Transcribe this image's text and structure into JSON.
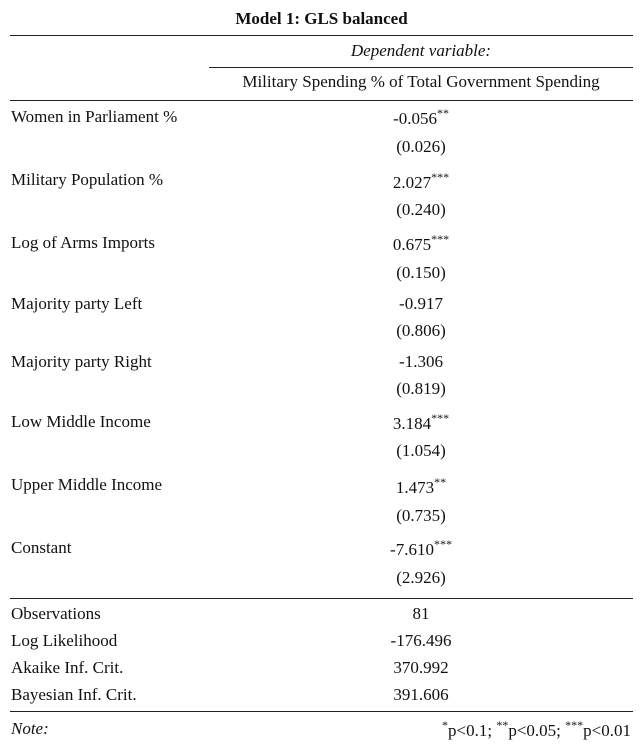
{
  "title": "Model 1: GLS balanced",
  "header": {
    "dependent_variable_label": "Dependent variable:",
    "dependent_variable": "Military Spending % of Total Government Spending"
  },
  "coefficients": [
    {
      "label": "Women in Parliament %",
      "estimate": "-0.056",
      "stars": "**",
      "se": "(0.026)"
    },
    {
      "label": "Military Population %",
      "estimate": "2.027",
      "stars": "***",
      "se": "(0.240)"
    },
    {
      "label": "Log of Arms Imports",
      "estimate": "0.675",
      "stars": "***",
      "se": "(0.150)"
    },
    {
      "label": "Majority party Left",
      "estimate": "-0.917",
      "stars": "",
      "se": "(0.806)"
    },
    {
      "label": "Majority party Right",
      "estimate": "-1.306",
      "stars": "",
      "se": "(0.819)"
    },
    {
      "label": "Low Middle Income",
      "estimate": "3.184",
      "stars": "***",
      "se": "(1.054)"
    },
    {
      "label": "Upper Middle Income",
      "estimate": "1.473",
      "stars": "**",
      "se": "(0.735)"
    },
    {
      "label": "Constant",
      "estimate": "-7.610",
      "stars": "***",
      "se": "(2.926)"
    }
  ],
  "statistics": [
    {
      "label": "Observations",
      "value": "81"
    },
    {
      "label": "Log Likelihood",
      "value": "-176.496"
    },
    {
      "label": "Akaike Inf. Crit.",
      "value": "370.992"
    },
    {
      "label": "Bayesian Inf. Crit.",
      "value": "391.606"
    }
  ],
  "note": {
    "label": "Note:",
    "sig1_stars": "*",
    "sig1_text": "p<0.1; ",
    "sig2_stars": "**",
    "sig2_text": "p<0.05; ",
    "sig3_stars": "***",
    "sig3_text": "p<0.01"
  }
}
